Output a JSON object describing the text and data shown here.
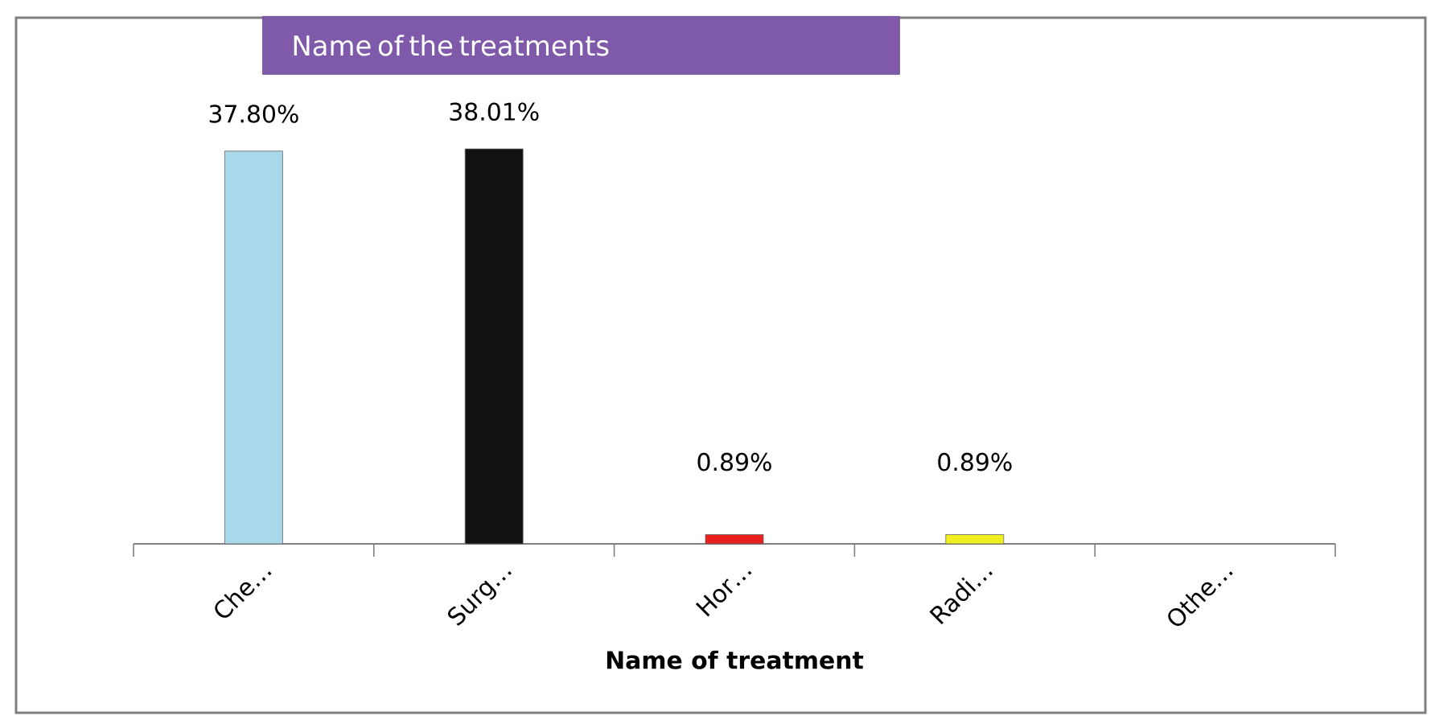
{
  "chart_data": {
    "type": "bar",
    "title": "Name of the treatments",
    "xlabel": "Name of treatment",
    "categories": [
      "Che…",
      "Surg…",
      "Hor…",
      "Radi…",
      "Othe…"
    ],
    "values": [
      37.8,
      38.01,
      0.89,
      0.89,
      null
    ],
    "colors": [
      "#a8d8ea",
      "#111111",
      "#e82020",
      "#f0f020",
      "#cccccc"
    ],
    "value_labels": [
      "37.80%",
      "38.01%",
      "0.89%",
      "0.89%",
      null
    ]
  }
}
